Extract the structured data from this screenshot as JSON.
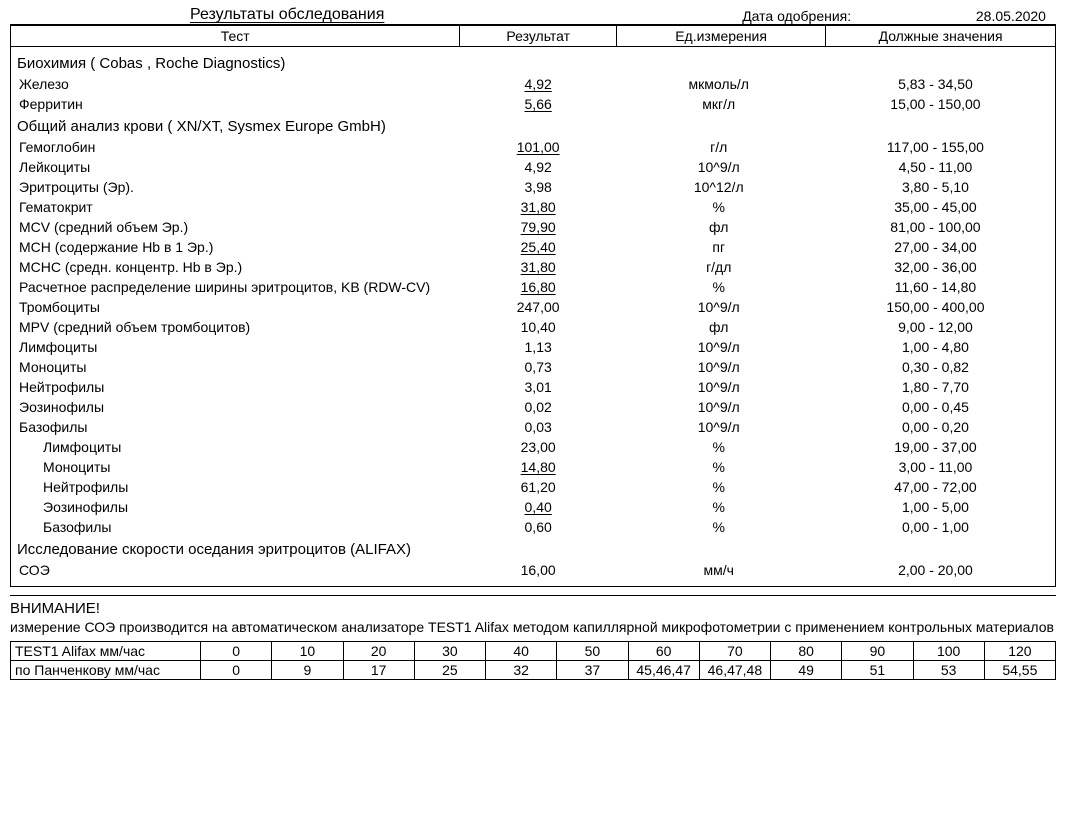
{
  "header": {
    "title": "Результаты обследования",
    "approval_label": "Дата одобрения:",
    "approval_date": "28.05.2020"
  },
  "columns": {
    "test": "Тест",
    "result": "Результат",
    "unit": "Ед.измерения",
    "reference": "Должные значения"
  },
  "sections": [
    {
      "title": "Биохимия ( Cobas , Roche Diagnostics)",
      "rows": [
        {
          "name": "Железо",
          "result": "4,92",
          "abn": true,
          "unit": "мкмоль/л",
          "ref": "5,83 - 34,50"
        },
        {
          "name": "Ферритин",
          "result": "5,66",
          "abn": true,
          "unit": "мкг/л",
          "ref": "15,00 - 150,00"
        }
      ]
    },
    {
      "title": "Общий анализ крови ( XN/XT, Sysmex  Europe GmbH)",
      "rows": [
        {
          "name": "Гемоглобин",
          "result": "101,00",
          "abn": true,
          "unit": "г/л",
          "ref": "117,00 - 155,00"
        },
        {
          "name": "Лейкоциты",
          "result": "4,92",
          "abn": false,
          "unit": "10^9/л",
          "ref": "4,50 - 11,00"
        },
        {
          "name": "Эритроциты (Эр).",
          "result": "3,98",
          "abn": false,
          "unit": "10^12/л",
          "ref": "3,80 - 5,10"
        },
        {
          "name": "Гематокрит",
          "result": "31,80",
          "abn": true,
          "unit": "%",
          "ref": "35,00 - 45,00"
        },
        {
          "name": "MCV (средний объем Эр.)",
          "result": "79,90",
          "abn": true,
          "unit": "фл",
          "ref": "81,00 - 100,00"
        },
        {
          "name": "MCH (содержание Hb в 1 Эр.)",
          "result": "25,40",
          "abn": true,
          "unit": "пг",
          "ref": "27,00 - 34,00"
        },
        {
          "name": "MCHC (средн. концентр. Hb в Эр.)",
          "result": "31,80",
          "abn": true,
          "unit": "г/дл",
          "ref": "32,00 - 36,00"
        },
        {
          "name": "Расчетное распределение ширины эритроцитов, KB (RDW-CV)",
          "wrap": true,
          "result": "16,80",
          "abn": true,
          "unit": "%",
          "ref": "11,60 - 14,80"
        },
        {
          "name": "Тромбоциты",
          "result": "247,00",
          "abn": false,
          "unit": "10^9/л",
          "ref": "150,00 - 400,00"
        },
        {
          "name": "MPV (средний объем тромбоцитов)",
          "result": "10,40",
          "abn": false,
          "unit": "фл",
          "ref": "9,00 - 12,00"
        },
        {
          "name": "Лимфоциты",
          "result": "1,13",
          "abn": false,
          "unit": "10^9/л",
          "ref": "1,00 - 4,80"
        },
        {
          "name": "Моноциты",
          "result": "0,73",
          "abn": false,
          "unit": "10^9/л",
          "ref": "0,30 - 0,82"
        },
        {
          "name": "Нейтрофилы",
          "result": "3,01",
          "abn": false,
          "unit": "10^9/л",
          "ref": "1,80 - 7,70"
        },
        {
          "name": "Эозинофилы",
          "result": "0,02",
          "abn": false,
          "unit": "10^9/л",
          "ref": "0,00 - 0,45"
        },
        {
          "name": "Базофилы",
          "result": "0,03",
          "abn": false,
          "unit": "10^9/л",
          "ref": "0,00 - 0,20"
        },
        {
          "name": "Лимфоциты",
          "indent": true,
          "result": "23,00",
          "abn": false,
          "unit": "%",
          "ref": "19,00 - 37,00"
        },
        {
          "name": "Моноциты",
          "indent": true,
          "result": "14,80",
          "abn": true,
          "unit": "%",
          "ref": "3,00 - 11,00"
        },
        {
          "name": "Нейтрофилы",
          "indent": true,
          "result": "61,20",
          "abn": false,
          "unit": "%",
          "ref": "47,00 - 72,00"
        },
        {
          "name": "Эозинофилы",
          "indent": true,
          "result": "0,40",
          "abn": true,
          "unit": "%",
          "ref": "1,00 - 5,00"
        },
        {
          "name": "Базофилы",
          "indent": true,
          "result": "0,60",
          "abn": false,
          "unit": "%",
          "ref": "0,00 - 1,00"
        }
      ]
    },
    {
      "title": "Исследование скорости оседания эритроцитов (ALIFAX)",
      "rows": [
        {
          "name": "СОЭ",
          "result": "16,00",
          "abn": false,
          "unit": "мм/ч",
          "ref": "2,00 - 20,00"
        }
      ]
    }
  ],
  "attention": {
    "heading": "ВНИМАНИЕ!",
    "text": "измерение СОЭ производится на автоматическом анализаторе TEST1 Alifax методом капиллярной микрофотометрии с применением контрольных материалов"
  },
  "conversion": {
    "row1_label": "TEST1 Alifax мм/час",
    "row2_label": "по Панченкову мм/час",
    "cols": [
      "0",
      "10",
      "20",
      "30",
      "40",
      "50",
      "60",
      "70",
      "80",
      "90",
      "100",
      "120"
    ],
    "vals": [
      "0",
      "9",
      "17",
      "25",
      "32",
      "37",
      "45,46,47",
      "46,47,48",
      "49",
      "51",
      "53",
      "54,55"
    ]
  }
}
